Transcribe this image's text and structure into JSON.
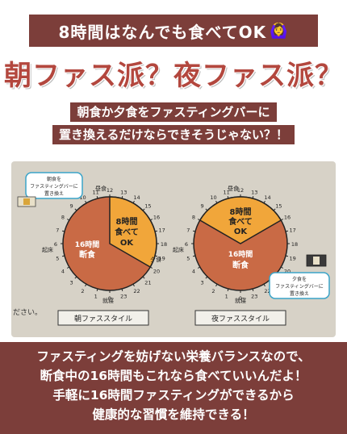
{
  "banner": {
    "text": "8時間はなんでも食べてOK",
    "emoji": "🙆‍♀️"
  },
  "headline": "朝ファス派？夜ファス派？",
  "subtitle": [
    "朝食か夕食をファスティングバーに",
    "置き換えるだけならできそうじゃない？！"
  ],
  "photo": {
    "left_chart": {
      "callout": [
        "朝食を",
        "ファスティングバーに",
        "置き換え"
      ],
      "eat_label": [
        "8時間",
        "食べて",
        "OK"
      ],
      "fast_label": [
        "16時間",
        "断食"
      ],
      "side_labels": {
        "wake": "起床",
        "lunch": "昼食",
        "dinner": "夕食",
        "sleep": "就寝"
      },
      "footer": "朝ファススタイル"
    },
    "right_chart": {
      "callout": [
        "夕食を",
        "ファスティングバーに",
        "置き換え"
      ],
      "eat_label": [
        "8時間",
        "食べて",
        "OK"
      ],
      "fast_label": [
        "16時間",
        "断食"
      ],
      "side_labels": {
        "wake": "起床",
        "lunch": "昼食",
        "sleep": "就寝"
      },
      "footer": "夜ファススタイル"
    },
    "left_edge_text": "ださい。",
    "clock_numbers": [
      "12",
      "13",
      "14",
      "15",
      "16",
      "17",
      "18",
      "19",
      "20",
      "21",
      "22",
      "23",
      "0",
      "1",
      "2",
      "3",
      "4",
      "5",
      "6",
      "7",
      "8",
      "9",
      "10",
      "11"
    ],
    "colors": {
      "fast": "#c96a45",
      "eat": "#f1a63a",
      "callout_border": "#3aa4c8"
    }
  },
  "bottom": [
    "ファスティングを妨げない栄養バランスなので、",
    "断食中の16時間もこれなら食べていいんだよ！",
    "手軽に16時間ファスティングができるから",
    "健康的な習慣を維持できる！"
  ]
}
